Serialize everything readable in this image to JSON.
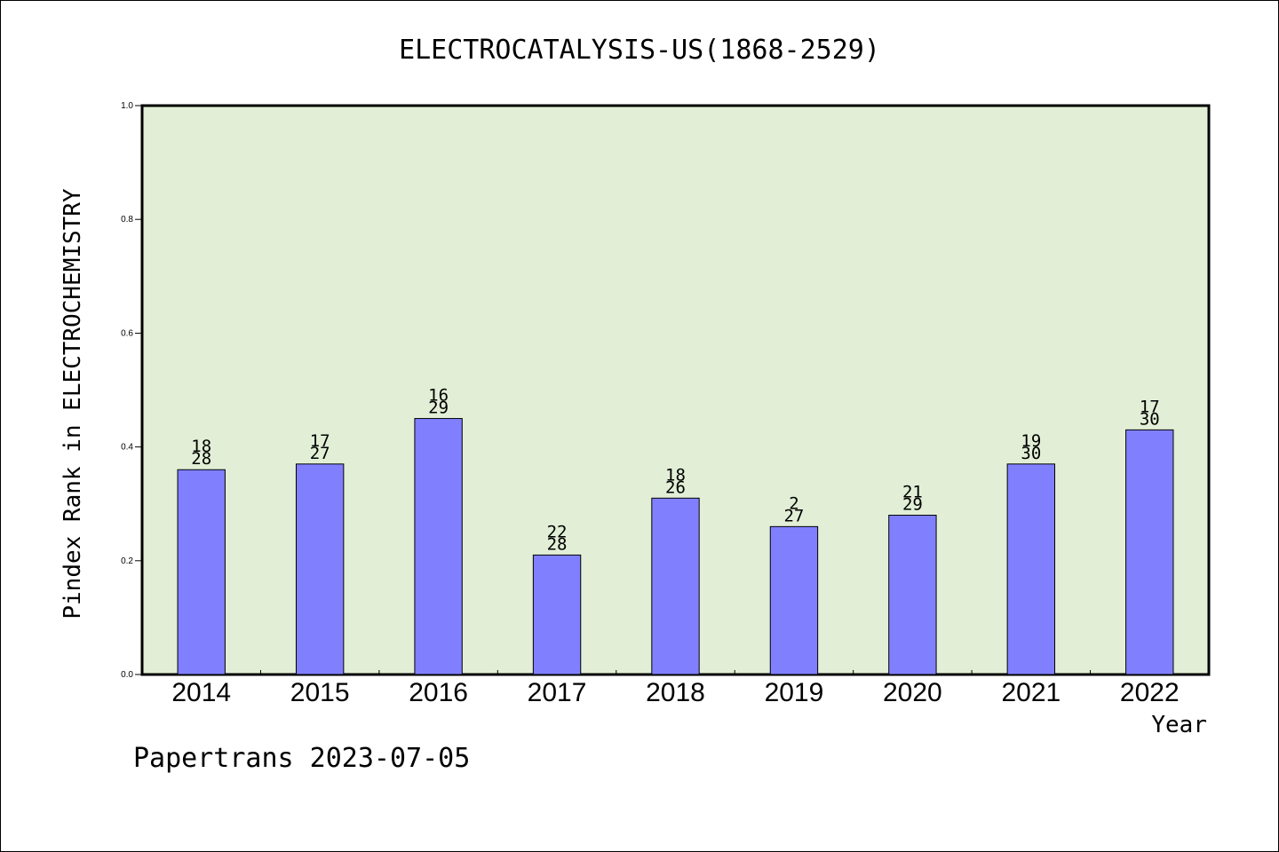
{
  "chart_data": {
    "type": "bar",
    "title": "ELECTROCATALYSIS-US(1868-2529)",
    "xlabel": "Year",
    "ylabel": "Pindex Rank in ELECTROCHEMISTRY",
    "ylim": [
      0,
      1.0
    ],
    "yticks": [
      "0.0",
      "0.2",
      "0.4",
      "0.6",
      "0.8",
      "1.0"
    ],
    "categories": [
      "2014",
      "2015",
      "2016",
      "2017",
      "2018",
      "2019",
      "2020",
      "2021",
      "2022"
    ],
    "values": [
      0.36,
      0.37,
      0.45,
      0.21,
      0.31,
      0.26,
      0.28,
      0.37,
      0.43
    ],
    "labels_top": [
      "18",
      "17",
      "16",
      "22",
      "18",
      "2",
      "21",
      "19",
      "17"
    ],
    "labels_bottom": [
      "28",
      "27",
      "29",
      "28",
      "26",
      "27",
      "29",
      "30",
      "30"
    ],
    "footer": "Papertrans 2023-07-05",
    "colors": {
      "plot_bg": "#e2efd6",
      "bar": "#8080ff",
      "frame": "#000000"
    },
    "grid": false
  }
}
